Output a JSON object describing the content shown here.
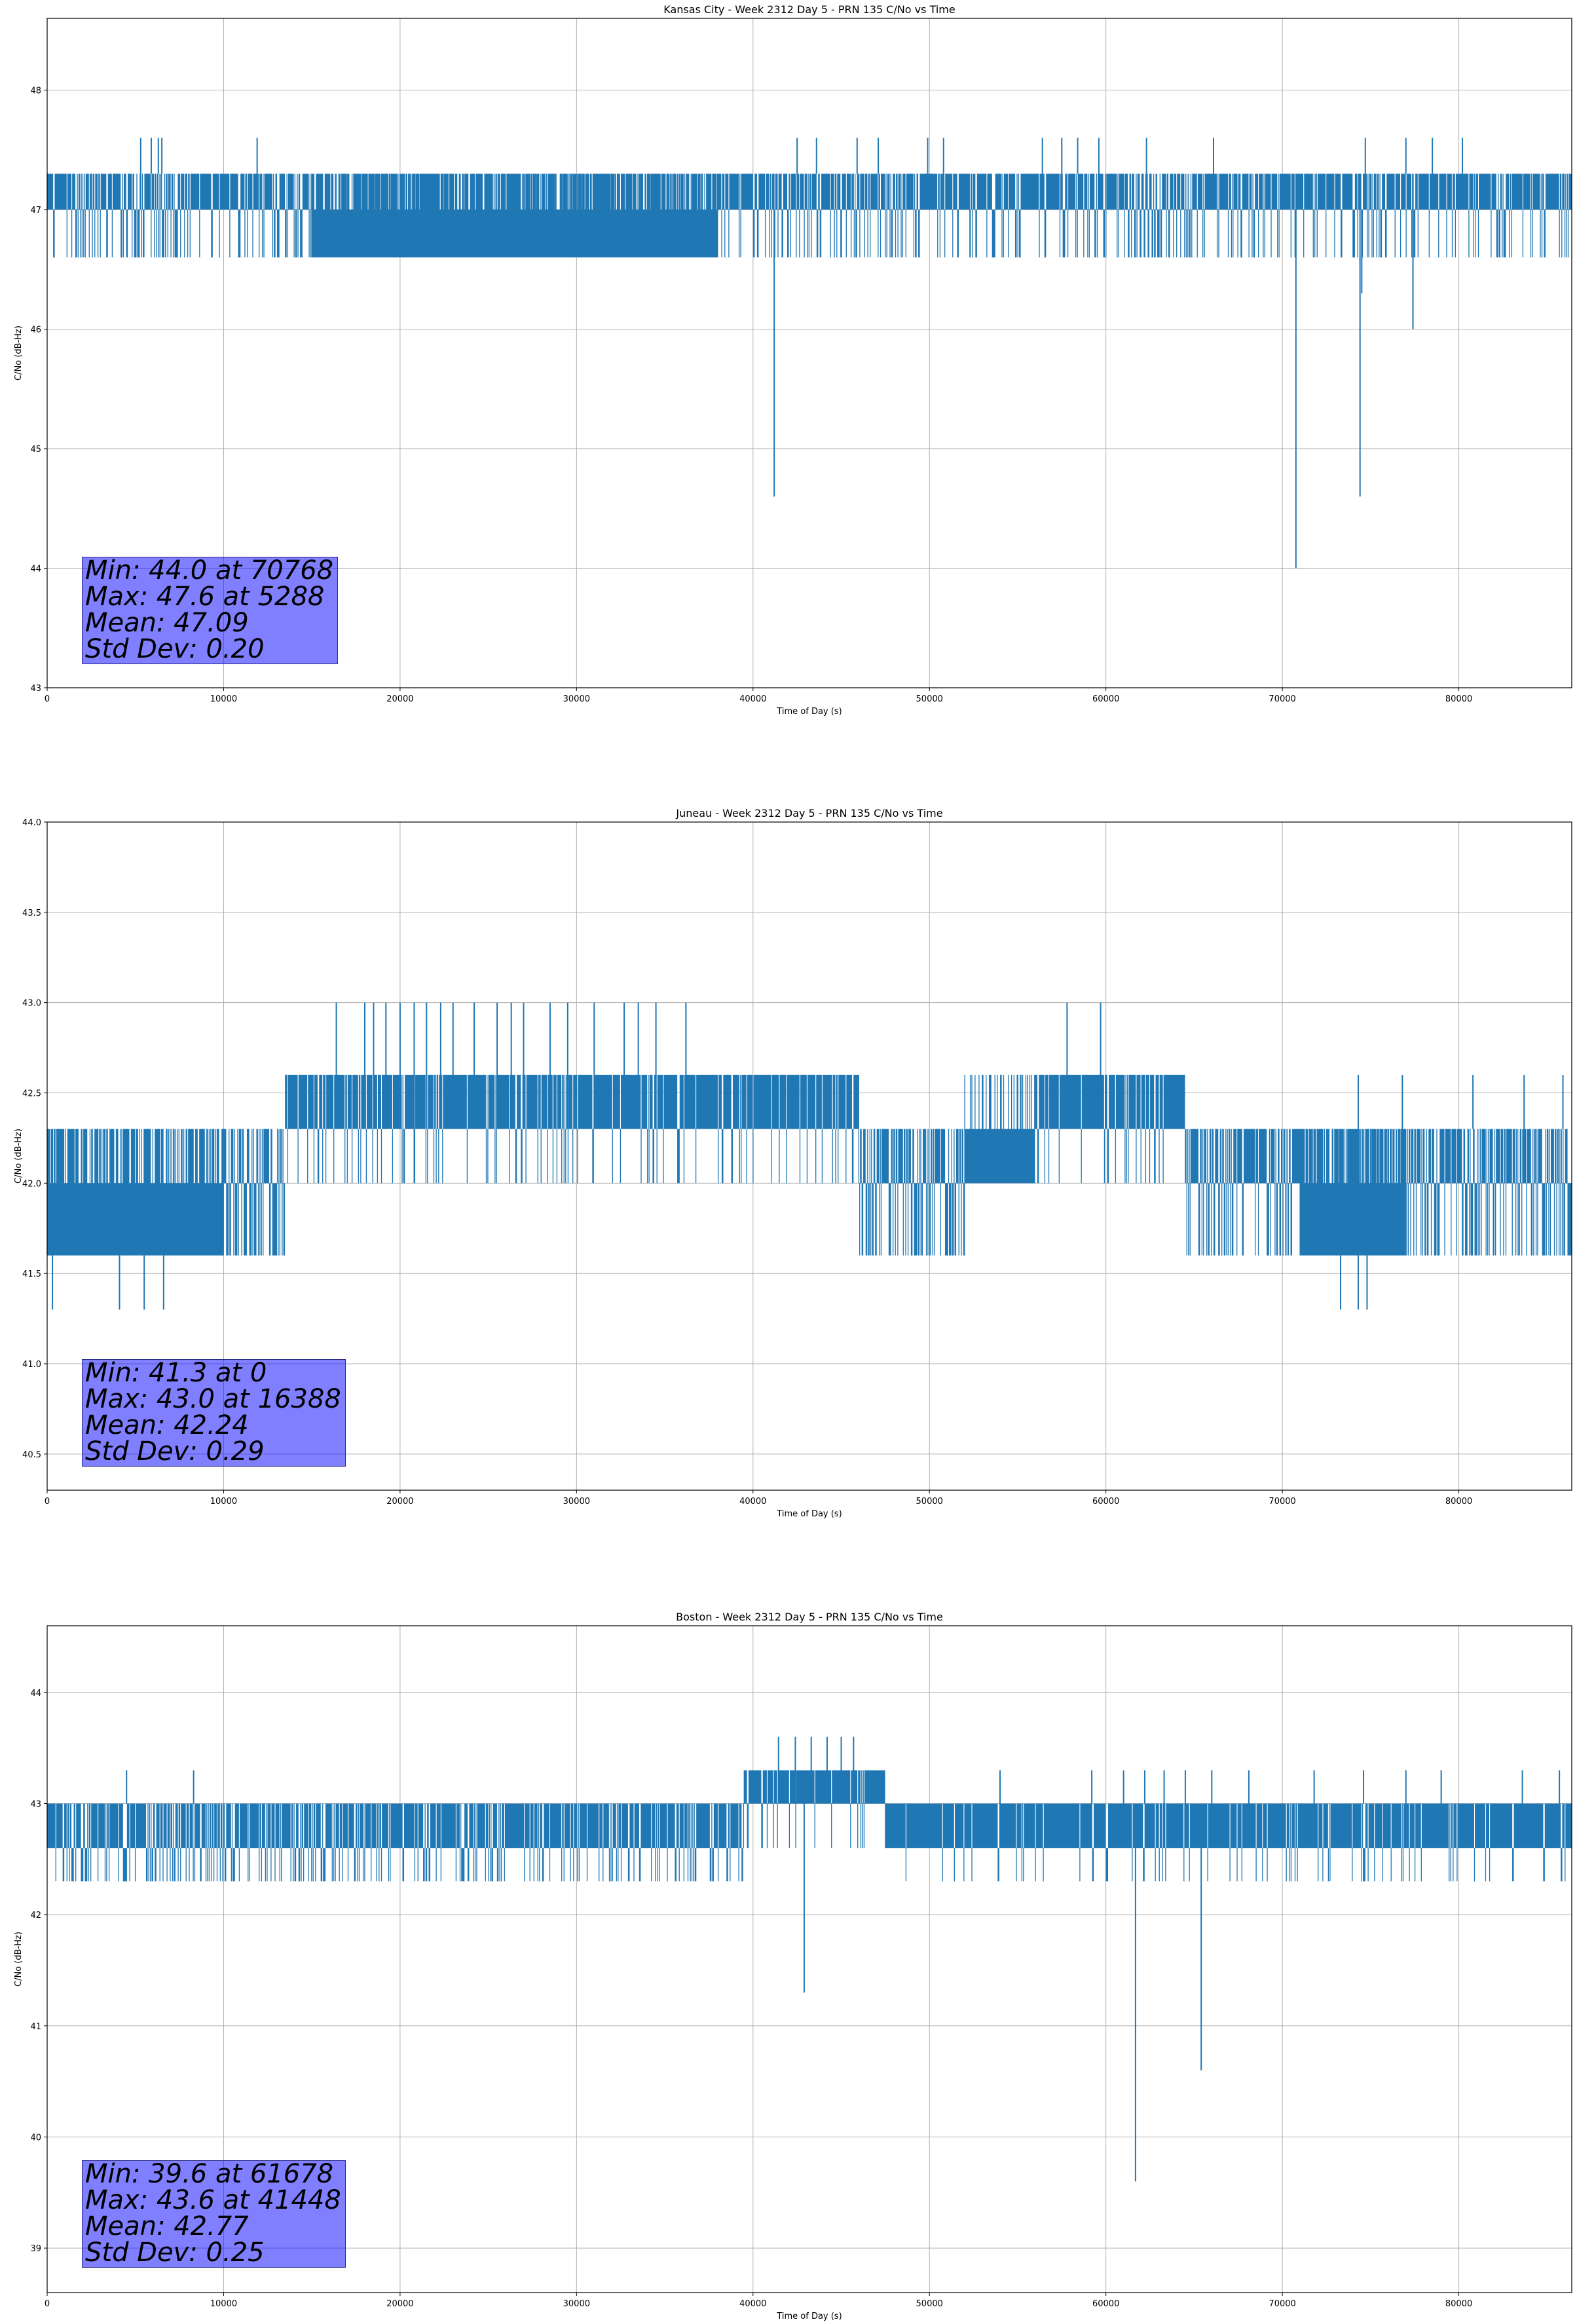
{
  "chart_data": [
    {
      "type": "line",
      "title": "Kansas City - Week 2312 Day 5 - PRN 135 C/No vs Time",
      "xlabel": "Time of Day (s)",
      "ylabel": "C/No (dB-Hz)",
      "xlim": [
        0,
        86400
      ],
      "ylim": [
        43,
        48.6
      ],
      "xticks": [
        0,
        10000,
        20000,
        30000,
        40000,
        50000,
        60000,
        70000,
        80000
      ],
      "yticks": [
        43,
        44,
        45,
        46,
        47,
        48
      ],
      "ytick_labels": [
        "43",
        "44",
        "45",
        "46",
        "47",
        "48"
      ],
      "color": "#1f77b4",
      "grid": true,
      "series": [
        {
          "name": "C/No",
          "segments": [
            {
              "x0": 0,
              "x1": 38000,
              "low": 47.0,
              "high": 47.3,
              "alt": 46.6,
              "altRate": 0.25
            },
            {
              "x0": 15000,
              "x1": 38000,
              "low": 46.6,
              "high": 47.0,
              "alt": 47.3,
              "altRate": 0.35
            },
            {
              "x0": 38000,
              "x1": 86400,
              "low": 47.0,
              "high": 47.3,
              "alt": 46.6,
              "altRate": 0.2
            }
          ],
          "spikes": [
            [
              41200,
              44.6
            ],
            [
              70768,
              44.0
            ],
            [
              74400,
              44.6
            ],
            [
              77400,
              46.0
            ],
            [
              52300,
              46.6
            ],
            [
              74500,
              46.3
            ]
          ],
          "ups": [
            [
              5300,
              47.6
            ],
            [
              5900,
              47.6
            ],
            [
              6300,
              47.6
            ],
            [
              6500,
              47.6
            ],
            [
              11900,
              47.6
            ],
            [
              42500,
              47.6
            ],
            [
              43600,
              47.6
            ],
            [
              45900,
              47.6
            ],
            [
              47100,
              47.6
            ],
            [
              49900,
              47.6
            ],
            [
              50800,
              47.6
            ],
            [
              56400,
              47.6
            ],
            [
              57500,
              47.6
            ],
            [
              58400,
              47.6
            ],
            [
              59600,
              47.6
            ],
            [
              62300,
              47.6
            ],
            [
              66100,
              47.6
            ],
            [
              74700,
              47.6
            ],
            [
              77000,
              47.6
            ],
            [
              78500,
              47.6
            ],
            [
              80200,
              47.6
            ]
          ]
        }
      ],
      "stats": [
        "Min: 44.0 at 70768",
        "Max: 47.6 at 5288",
        "Mean: 47.09",
        "Std Dev: 0.20"
      ]
    },
    {
      "type": "line",
      "title": "Juneau - Week 2312 Day 5 - PRN 135 C/No vs Time",
      "xlabel": "Time of Day (s)",
      "ylabel": "C/No (dB-Hz)",
      "xlim": [
        0,
        86400
      ],
      "ylim": [
        40.3,
        44.0
      ],
      "xticks": [
        0,
        10000,
        20000,
        30000,
        40000,
        50000,
        60000,
        70000,
        80000
      ],
      "yticks": [
        40.5,
        41.0,
        41.5,
        42.0,
        42.5,
        43.0,
        43.5,
        44.0
      ],
      "ytick_labels": [
        "40.5",
        "41.0",
        "41.5",
        "42.0",
        "42.5",
        "43.0",
        "43.5",
        "44.0"
      ],
      "color": "#1f77b4",
      "grid": true,
      "series": [
        {
          "name": "C/No",
          "segments": [
            {
              "x0": 0,
              "x1": 13500,
              "low": 42.0,
              "high": 42.3,
              "alt": 41.6,
              "altRate": 0.45
            },
            {
              "x0": 0,
              "x1": 10000,
              "low": 41.6,
              "high": 42.0,
              "alt": 42.3,
              "altRate": 0.3
            },
            {
              "x0": 13500,
              "x1": 46000,
              "low": 42.3,
              "high": 42.6,
              "alt": 42.0,
              "altRate": 0.12
            },
            {
              "x0": 46000,
              "x1": 52000,
              "low": 42.0,
              "high": 42.3,
              "alt": 41.6,
              "altRate": 0.4
            },
            {
              "x0": 52000,
              "x1": 56000,
              "low": 42.0,
              "high": 42.3,
              "alt": 42.6,
              "altRate": 0.3
            },
            {
              "x0": 56000,
              "x1": 64500,
              "low": 42.3,
              "high": 42.6,
              "alt": 42.0,
              "altRate": 0.12
            },
            {
              "x0": 64500,
              "x1": 77000,
              "low": 42.0,
              "high": 42.3,
              "alt": 41.6,
              "altRate": 0.3
            },
            {
              "x0": 71000,
              "x1": 77000,
              "low": 41.6,
              "high": 42.0,
              "alt": 42.3,
              "altRate": 0.3
            },
            {
              "x0": 77000,
              "x1": 86400,
              "low": 42.0,
              "high": 42.3,
              "alt": 41.6,
              "altRate": 0.35
            }
          ],
          "spikes": [
            [
              300,
              41.3
            ],
            [
              4100,
              41.3
            ],
            [
              5500,
              41.3
            ],
            [
              6600,
              41.3
            ],
            [
              73300,
              41.3
            ],
            [
              74300,
              41.3
            ],
            [
              74800,
              41.3
            ]
          ],
          "ups": [
            [
              16388,
              43.0
            ],
            [
              18000,
              43.0
            ],
            [
              18500,
              43.0
            ],
            [
              19200,
              43.0
            ],
            [
              20000,
              43.0
            ],
            [
              20800,
              43.0
            ],
            [
              21500,
              43.0
            ],
            [
              22300,
              43.0
            ],
            [
              23000,
              43.0
            ],
            [
              24200,
              43.0
            ],
            [
              25500,
              43.0
            ],
            [
              26300,
              43.0
            ],
            [
              27000,
              43.0
            ],
            [
              28500,
              43.0
            ],
            [
              29500,
              43.0
            ],
            [
              31000,
              43.0
            ],
            [
              32700,
              43.0
            ],
            [
              33500,
              43.0
            ],
            [
              34500,
              43.0
            ],
            [
              36200,
              43.0
            ],
            [
              57800,
              43.0
            ],
            [
              59700,
              43.0
            ],
            [
              74300,
              42.6
            ],
            [
              76800,
              42.6
            ],
            [
              80800,
              42.6
            ],
            [
              83700,
              42.6
            ],
            [
              85900,
              42.6
            ]
          ]
        }
      ],
      "stats": [
        "Min: 41.3 at 0",
        "Max: 43.0 at 16388",
        "Mean: 42.24",
        "Std Dev: 0.29"
      ]
    },
    {
      "type": "line",
      "title": "Boston - Week 2312 Day 5 - PRN 135 C/No vs Time",
      "xlabel": "Time of Day (s)",
      "ylabel": "C/No (dB-Hz)",
      "xlim": [
        0,
        86400
      ],
      "ylim": [
        38.6,
        44.6
      ],
      "xticks": [
        0,
        10000,
        20000,
        30000,
        40000,
        50000,
        60000,
        70000,
        80000
      ],
      "yticks": [
        39,
        40,
        41,
        42,
        43,
        44
      ],
      "ytick_labels": [
        "39",
        "40",
        "41",
        "42",
        "43",
        "44"
      ],
      "color": "#1f77b4",
      "grid": true,
      "series": [
        {
          "name": "C/No",
          "segments": [
            {
              "x0": 0,
              "x1": 39500,
              "low": 42.6,
              "high": 43.0,
              "alt": 42.3,
              "altRate": 0.2
            },
            {
              "x0": 39500,
              "x1": 47500,
              "low": 43.0,
              "high": 43.3,
              "alt": 42.6,
              "altRate": 0.08
            },
            {
              "x0": 47500,
              "x1": 86400,
              "low": 42.6,
              "high": 43.0,
              "alt": 42.3,
              "altRate": 0.08
            }
          ],
          "spikes": [
            [
              42900,
              41.3
            ],
            [
              61678,
              39.6
            ],
            [
              65400,
              40.6
            ]
          ],
          "ups": [
            [
              4500,
              43.3
            ],
            [
              8300,
              43.3
            ],
            [
              41448,
              43.6
            ],
            [
              42400,
              43.6
            ],
            [
              43300,
              43.6
            ],
            [
              44200,
              43.6
            ],
            [
              45000,
              43.6
            ],
            [
              45700,
              43.6
            ],
            [
              54000,
              43.3
            ],
            [
              59200,
              43.3
            ],
            [
              61000,
              43.3
            ],
            [
              62200,
              43.3
            ],
            [
              63300,
              43.3
            ],
            [
              64500,
              43.3
            ],
            [
              66000,
              43.3
            ],
            [
              68100,
              43.3
            ],
            [
              71800,
              43.3
            ],
            [
              74600,
              43.3
            ],
            [
              77000,
              43.3
            ],
            [
              79000,
              43.3
            ],
            [
              83600,
              43.3
            ],
            [
              85700,
              43.3
            ]
          ]
        }
      ],
      "stats": [
        "Min: 39.6 at 61678",
        "Max: 43.6 at 41448",
        "Mean: 42.77",
        "Std Dev: 0.25"
      ]
    }
  ]
}
